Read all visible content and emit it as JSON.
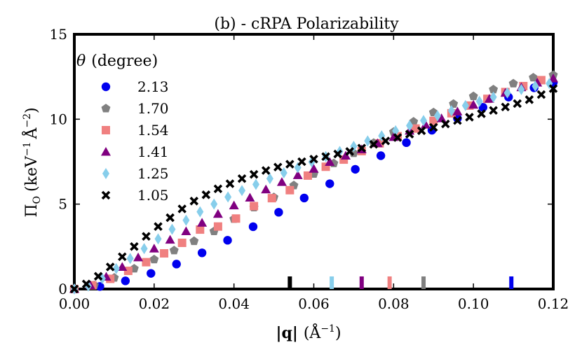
{
  "chart_data": {
    "type": "scatter",
    "title": "(b) - cRPA Polarizability",
    "xlabel": "|q| (Å⁻¹)",
    "ylabel": "Π_O (keV⁻¹ Å⁻²)",
    "xlabel_parts": {
      "q": "|q|",
      "open": "(Å",
      "exp": "−1",
      "close": ")"
    },
    "ylabel_parts": {
      "pi": "Π",
      "sub": "O",
      "open": "(keV",
      "exp1": "−1",
      "mid": "Å",
      "exp2": "−2",
      "close": ")"
    },
    "xlim": [
      0.0,
      0.12
    ],
    "ylim": [
      0,
      15
    ],
    "xticks": [
      0.0,
      0.02,
      0.04,
      0.06,
      0.08,
      0.1,
      0.12
    ],
    "xtick_labels": [
      "0.00",
      "0.02",
      "0.04",
      "0.06",
      "0.08",
      "0.10",
      "0.12"
    ],
    "yticks": [
      0,
      5,
      10,
      15
    ],
    "ytick_labels": [
      "0",
      "5",
      "10",
      "15"
    ],
    "legend": {
      "title_symbol": "θ",
      "title_text": "(degree)",
      "placement": "top-left"
    },
    "series": [
      {
        "name": "2.13",
        "marker": "circle",
        "color": "#0000ee",
        "x": [
          0.0,
          0.0064,
          0.0128,
          0.0192,
          0.0256,
          0.032,
          0.0384,
          0.0448,
          0.0512,
          0.0576,
          0.064,
          0.0704,
          0.0768,
          0.0832,
          0.0896,
          0.096,
          0.1024,
          0.1088,
          0.1152,
          0.12
        ],
        "y": [
          0.0,
          0.15,
          0.48,
          0.92,
          1.47,
          2.13,
          2.87,
          3.67,
          4.52,
          5.36,
          6.2,
          7.05,
          7.85,
          8.62,
          9.35,
          10.05,
          10.7,
          11.3,
          11.85,
          12.15
        ],
        "marker_band": 0.1095
      },
      {
        "name": "1.70",
        "marker": "pentagon",
        "color": "#808080",
        "x": [
          0.0,
          0.005,
          0.01,
          0.015,
          0.02,
          0.025,
          0.03,
          0.035,
          0.04,
          0.045,
          0.05,
          0.055,
          0.06,
          0.065,
          0.07,
          0.075,
          0.08,
          0.085,
          0.09,
          0.095,
          0.1,
          0.105,
          0.11,
          0.115,
          0.12
        ],
        "y": [
          0.0,
          0.22,
          0.66,
          1.2,
          1.74,
          2.27,
          2.82,
          3.4,
          4.12,
          4.8,
          5.4,
          6.1,
          6.78,
          7.4,
          8.0,
          8.6,
          9.25,
          9.85,
          10.4,
          10.9,
          11.35,
          11.75,
          12.1,
          12.45,
          12.6
        ],
        "marker_band": 0.0875
      },
      {
        "name": "1.54",
        "marker": "square",
        "color": "#f08080",
        "x": [
          0.0,
          0.0045,
          0.009,
          0.0135,
          0.018,
          0.0225,
          0.027,
          0.0315,
          0.036,
          0.0405,
          0.045,
          0.0495,
          0.054,
          0.0585,
          0.063,
          0.0675,
          0.072,
          0.0765,
          0.081,
          0.0855,
          0.09,
          0.0945,
          0.099,
          0.1035,
          0.108,
          0.1125,
          0.117
        ],
        "y": [
          0.0,
          0.22,
          0.6,
          1.07,
          1.58,
          2.1,
          2.72,
          3.5,
          3.68,
          4.15,
          4.88,
          5.35,
          5.82,
          6.68,
          7.2,
          7.62,
          8.12,
          8.58,
          9.0,
          9.45,
          9.9,
          10.35,
          10.8,
          11.2,
          11.6,
          11.95,
          12.3
        ],
        "marker_band": 0.079
      },
      {
        "name": "1.41",
        "marker": "triangle",
        "color": "#800080",
        "x": [
          0.0,
          0.004,
          0.008,
          0.012,
          0.016,
          0.02,
          0.024,
          0.028,
          0.032,
          0.036,
          0.04,
          0.044,
          0.048,
          0.052,
          0.056,
          0.06,
          0.064,
          0.068,
          0.072,
          0.076,
          0.08,
          0.084,
          0.088,
          0.092,
          0.096,
          0.1,
          0.104,
          0.108,
          0.112,
          0.116,
          0.12
        ],
        "y": [
          0.0,
          0.22,
          0.72,
          1.3,
          1.86,
          2.38,
          2.9,
          3.4,
          3.9,
          4.42,
          4.92,
          5.38,
          5.86,
          6.3,
          6.7,
          7.08,
          7.48,
          7.85,
          8.22,
          8.58,
          8.95,
          9.32,
          9.68,
          10.05,
          10.45,
          10.85,
          11.2,
          11.55,
          11.88,
          12.15,
          12.4
        ],
        "marker_band": 0.072
      },
      {
        "name": "1.25",
        "marker": "diamond",
        "color": "#87ceeb",
        "x": [
          0.0,
          0.0035,
          0.007,
          0.0105,
          0.014,
          0.0175,
          0.021,
          0.0245,
          0.028,
          0.0315,
          0.035,
          0.0385,
          0.042,
          0.0455,
          0.049,
          0.0525,
          0.056,
          0.0595,
          0.063,
          0.0665,
          0.07,
          0.0735,
          0.077,
          0.0805,
          0.084,
          0.0875,
          0.091,
          0.0945,
          0.098,
          0.1015,
          0.105,
          0.1085,
          0.112,
          0.1155,
          0.119
        ],
        "y": [
          0.0,
          0.18,
          0.62,
          1.2,
          1.8,
          2.38,
          2.95,
          3.52,
          4.05,
          4.55,
          5.0,
          5.42,
          5.8,
          6.16,
          6.5,
          6.84,
          7.15,
          7.48,
          7.8,
          8.1,
          8.4,
          8.72,
          9.02,
          9.32,
          9.62,
          9.92,
          10.2,
          10.5,
          10.8,
          11.05,
          11.3,
          11.55,
          11.75,
          11.95,
          12.1
        ],
        "marker_band": 0.0645
      },
      {
        "name": "1.05",
        "marker": "x",
        "color": "#000000",
        "x": [
          0.0,
          0.003,
          0.006,
          0.009,
          0.012,
          0.015,
          0.018,
          0.021,
          0.024,
          0.027,
          0.03,
          0.033,
          0.036,
          0.039,
          0.042,
          0.045,
          0.048,
          0.051,
          0.054,
          0.057,
          0.06,
          0.063,
          0.066,
          0.069,
          0.072,
          0.075,
          0.078,
          0.081,
          0.084,
          0.087,
          0.09,
          0.093,
          0.096,
          0.099,
          0.102,
          0.105,
          0.108,
          0.111,
          0.114,
          0.117,
          0.12
        ],
        "y": [
          0.0,
          0.3,
          0.75,
          1.3,
          1.9,
          2.5,
          3.1,
          3.68,
          4.2,
          4.72,
          5.18,
          5.55,
          5.9,
          6.2,
          6.5,
          6.75,
          6.98,
          7.18,
          7.35,
          7.5,
          7.65,
          7.8,
          7.95,
          8.1,
          8.3,
          8.52,
          8.72,
          8.92,
          9.12,
          9.32,
          9.52,
          9.72,
          9.92,
          10.12,
          10.32,
          10.52,
          10.72,
          10.92,
          11.15,
          11.45,
          11.8
        ],
        "marker_band": 0.054
      }
    ]
  }
}
